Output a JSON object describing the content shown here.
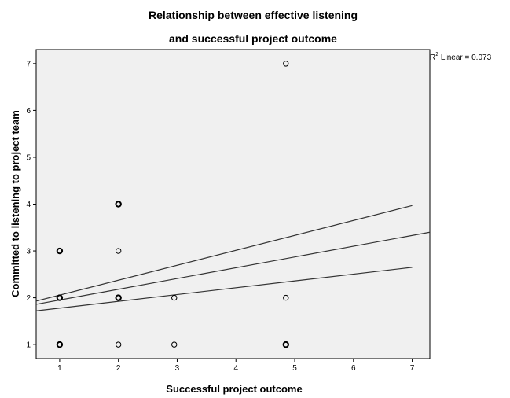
{
  "chart_data": {
    "type": "scatter",
    "title_lines": [
      "Relationship between effective listening",
      "and successful project outcome"
    ],
    "xlabel": "Successful project outcome",
    "ylabel": "Committed to listening to project team",
    "xlim": [
      0.6,
      7.3
    ],
    "ylim": [
      0.7,
      7.3
    ],
    "xticks": [
      1,
      2,
      3,
      4,
      5,
      6,
      7
    ],
    "yticks": [
      1,
      2,
      3,
      4,
      5,
      6,
      7
    ],
    "points": [
      {
        "x": 1,
        "y": 1,
        "bold": true
      },
      {
        "x": 1,
        "y": 2,
        "bold": true
      },
      {
        "x": 1,
        "y": 3,
        "bold": true
      },
      {
        "x": 2,
        "y": 1,
        "bold": false
      },
      {
        "x": 2,
        "y": 2,
        "bold": true
      },
      {
        "x": 2,
        "y": 3,
        "bold": false
      },
      {
        "x": 2,
        "y": 4,
        "bold": true
      },
      {
        "x": 2.95,
        "y": 1,
        "bold": false
      },
      {
        "x": 2.95,
        "y": 2,
        "bold": false
      },
      {
        "x": 4.85,
        "y": 1,
        "bold": true
      },
      {
        "x": 4.85,
        "y": 2,
        "bold": false
      },
      {
        "x": 4.85,
        "y": 7,
        "bold": false
      }
    ],
    "fit_line": {
      "x1": 0.6,
      "y1": 1.86,
      "x2": 7.3,
      "y2": 3.4
    },
    "confidence_bands": [
      {
        "x1": 0.6,
        "y1": 1.93,
        "x2": 7.0,
        "y2": 3.97
      },
      {
        "x1": 0.6,
        "y1": 1.72,
        "x2": 7.0,
        "y2": 2.65
      }
    ],
    "r2_annotation": {
      "prefix": "R",
      "superscript": "2",
      "text": " Linear = 0.073"
    },
    "plot_background": "#f0f0f0",
    "grid": false
  }
}
